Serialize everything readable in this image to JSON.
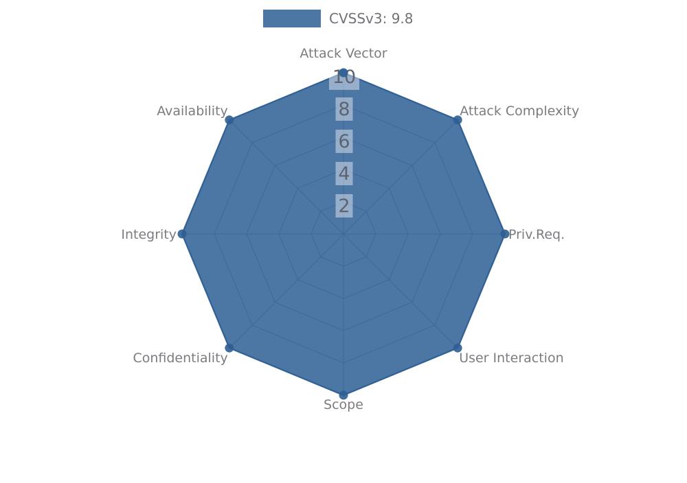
{
  "legend": {
    "label": "CVSSv3: 9.8",
    "swatch_color": "#2d5e94"
  },
  "chart_data": {
    "type": "radar",
    "categories": [
      "Attack Vector",
      "Attack Complexity",
      "Priv.Req.",
      "User Interaction",
      "Scope",
      "Confidentiality",
      "Integrity",
      "Availability"
    ],
    "series": [
      {
        "name": "CVSSv3: 9.8",
        "values": [
          10,
          10,
          10,
          10,
          10,
          10,
          10,
          10
        ]
      }
    ],
    "ticks": [
      2,
      4,
      6,
      8,
      10
    ],
    "rlim": [
      0,
      10
    ],
    "grid": true,
    "legend_position": "top-center",
    "colors": {
      "series_fill": "#2d5e94",
      "series_fill_opacity": 0.85,
      "grid_line": "#97a0ab",
      "category_label": "#7a7c80",
      "tick_label": "#5c6470",
      "tick_box": "#ffffff",
      "background": "#ffffff"
    }
  }
}
